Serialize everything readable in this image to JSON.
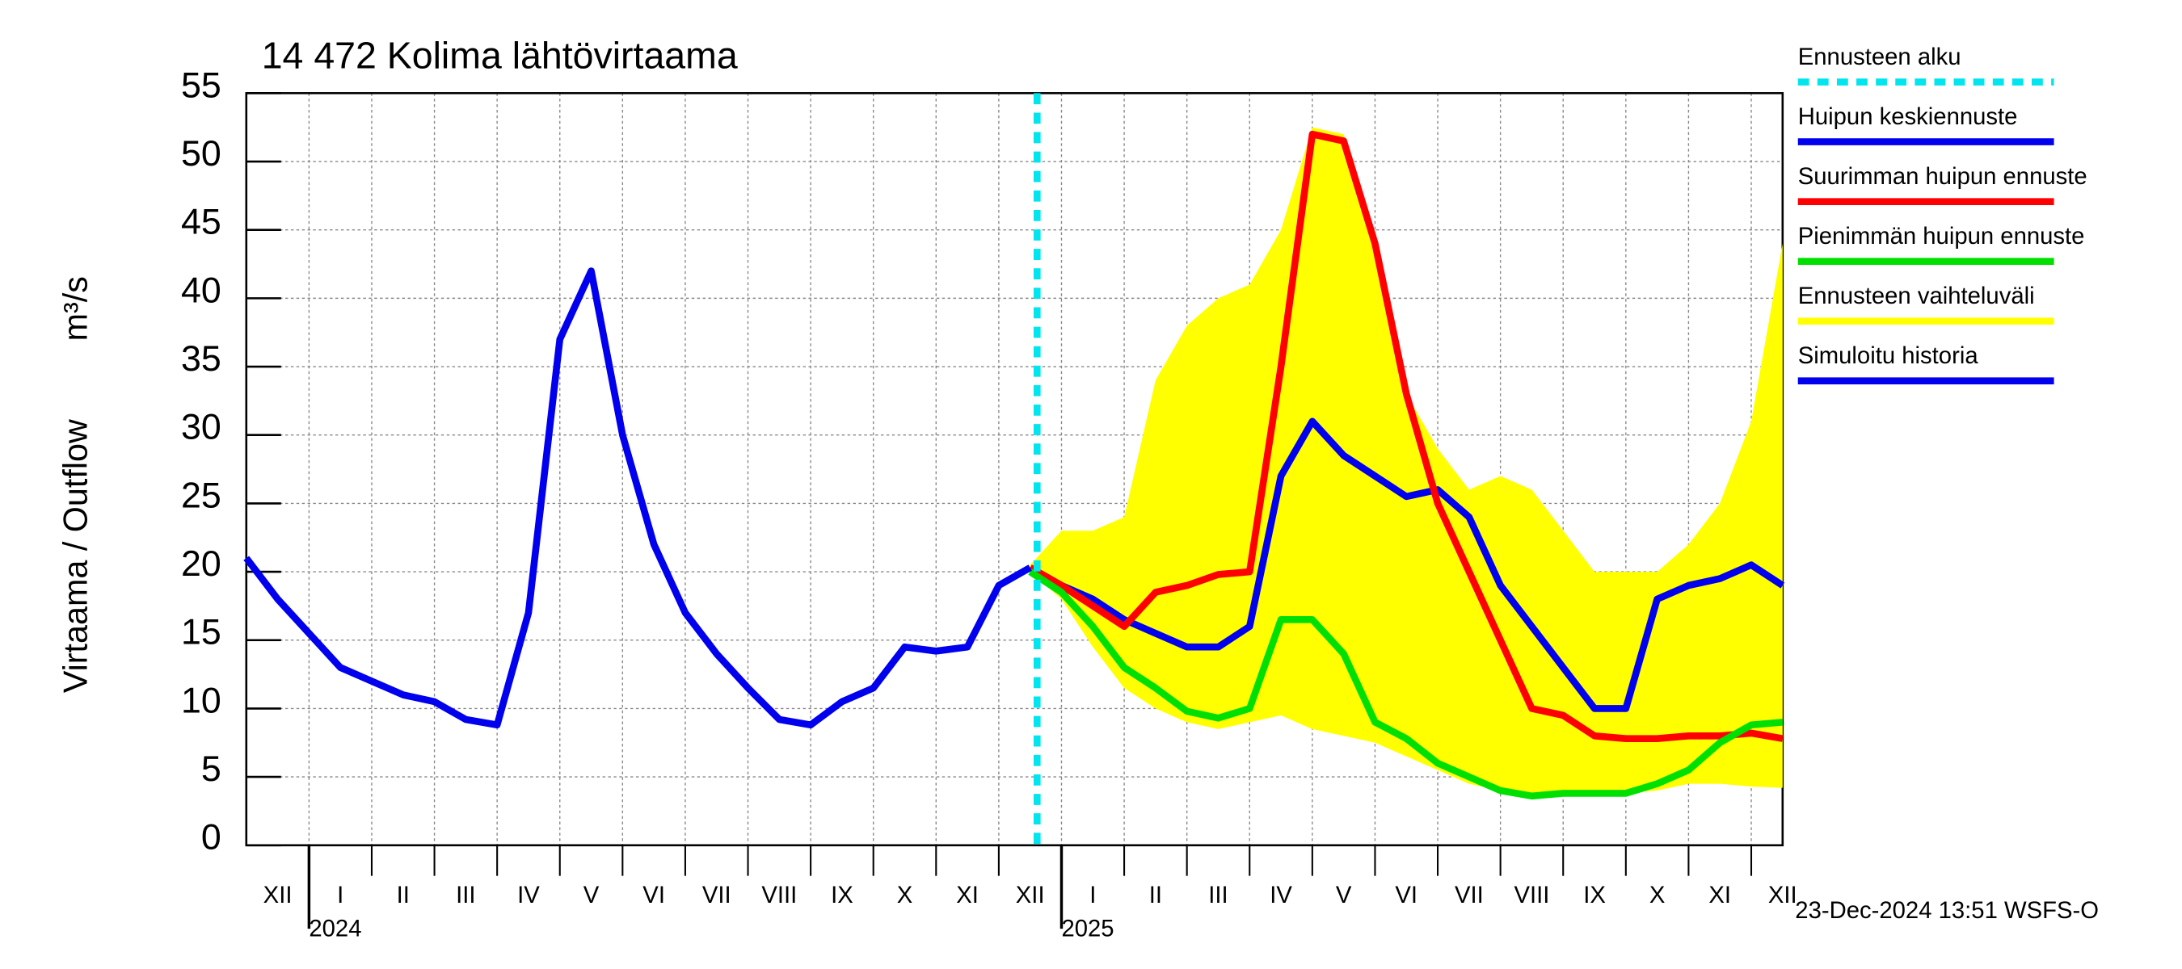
{
  "chart_data": {
    "type": "line",
    "title": "14 472 Kolima lähtövirtaama",
    "ylabel": "Virtaama / Outflow",
    "yunit": "m³/s",
    "timestamp": "23-Dec-2024 13:51 WSFS-O",
    "ylim": [
      0,
      55
    ],
    "yticks": [
      0,
      5,
      10,
      15,
      20,
      25,
      30,
      35,
      40,
      45,
      50,
      55
    ],
    "grid": true,
    "legend": "right",
    "categories": [
      null,
      "XII",
      null,
      "I",
      null,
      "II",
      null,
      "III",
      null,
      "IV",
      null,
      "V",
      null,
      "VI",
      null,
      "VII",
      null,
      "VIII",
      null,
      "IX",
      null,
      "X",
      null,
      "XI",
      null,
      "XII",
      null,
      "I",
      null,
      "II",
      null,
      "III",
      null,
      "IV",
      null,
      "V",
      null,
      "VI",
      null,
      "VII",
      null,
      "VIII",
      null,
      "IX",
      null,
      "X",
      null,
      "XI",
      null,
      "XII"
    ],
    "years": [
      null,
      null,
      "2024",
      null,
      null,
      null,
      null,
      null,
      null,
      null,
      null,
      null,
      null,
      null,
      null,
      null,
      null,
      null,
      null,
      null,
      null,
      null,
      null,
      null,
      null,
      null,
      "2025",
      null,
      null,
      null,
      null,
      null,
      null,
      null,
      null,
      null,
      null,
      null,
      null,
      null,
      null,
      null,
      null,
      null,
      null,
      null,
      null,
      null,
      null,
      null
    ],
    "series": [
      {
        "name": "Ennusteen alku",
        "color": "#00e5ee",
        "style": "forecast-start"
      },
      {
        "name": "Huipun keskiennuste",
        "color": "#0000ee",
        "style": "line",
        "values": [
          null,
          null,
          null,
          null,
          null,
          null,
          null,
          null,
          null,
          null,
          null,
          null,
          null,
          null,
          null,
          null,
          null,
          null,
          null,
          null,
          null,
          null,
          null,
          null,
          null,
          20.3,
          19,
          18,
          16.5,
          15.5,
          14.5,
          14.5,
          16,
          27,
          31,
          28.5,
          27,
          25.5,
          26,
          24,
          19,
          16,
          13,
          10,
          10,
          18,
          19,
          19.5,
          20.5,
          19
        ]
      },
      {
        "name": "Suurimman huipun ennuste",
        "color": "#ff0000",
        "style": "line",
        "values": [
          null,
          null,
          null,
          null,
          null,
          null,
          null,
          null,
          null,
          null,
          null,
          null,
          null,
          null,
          null,
          null,
          null,
          null,
          null,
          null,
          null,
          null,
          null,
          null,
          null,
          20.3,
          19,
          17.5,
          16,
          18.5,
          19,
          19.8,
          20,
          35,
          52,
          51.5,
          44,
          33,
          25,
          20,
          15,
          10,
          9.5,
          8,
          7.8,
          7.8,
          8,
          8,
          8.2,
          7.8
        ]
      },
      {
        "name": "Pienimmän huipun ennuste",
        "color": "#00e000",
        "style": "line",
        "values": [
          null,
          null,
          null,
          null,
          null,
          null,
          null,
          null,
          null,
          null,
          null,
          null,
          null,
          null,
          null,
          null,
          null,
          null,
          null,
          null,
          null,
          null,
          null,
          null,
          null,
          20,
          18.5,
          16,
          13,
          11.5,
          9.8,
          9.3,
          10,
          16.5,
          16.5,
          14,
          9,
          7.8,
          6,
          5,
          4,
          3.6,
          3.8,
          3.8,
          3.8,
          4.5,
          5.5,
          7.5,
          8.8,
          9
        ]
      },
      {
        "name": "Ennusteen vaihteluväli",
        "color": "#ffff00",
        "style": "band",
        "upper": [
          null,
          null,
          null,
          null,
          null,
          null,
          null,
          null,
          null,
          null,
          null,
          null,
          null,
          null,
          null,
          null,
          null,
          null,
          null,
          null,
          null,
          null,
          null,
          null,
          null,
          20.5,
          23,
          23,
          24,
          34,
          38,
          40,
          41,
          45,
          52.5,
          52,
          44,
          33,
          29,
          26,
          27,
          26,
          23,
          20,
          20,
          20,
          22,
          25,
          31,
          44
        ],
        "lower": [
          null,
          null,
          null,
          null,
          null,
          null,
          null,
          null,
          null,
          null,
          null,
          null,
          null,
          null,
          null,
          null,
          null,
          null,
          null,
          null,
          null,
          null,
          null,
          null,
          null,
          20,
          18,
          14.5,
          11.5,
          10,
          9,
          8.5,
          9,
          9.5,
          8.5,
          8,
          7.5,
          6.5,
          5.5,
          4.5,
          4,
          3.5,
          3.8,
          3.8,
          3.8,
          4,
          4.5,
          4.5,
          4.3,
          4.2
        ]
      },
      {
        "name": "Simuloitu historia",
        "color": "#0000ee",
        "style": "line",
        "values": [
          21,
          18,
          15.5,
          13,
          12,
          11,
          10.5,
          9.2,
          8.8,
          17,
          37,
          42,
          30,
          22,
          17,
          14,
          11.5,
          9.2,
          8.8,
          10.5,
          11.5,
          14.5,
          14.2,
          14.5,
          19,
          20.3,
          null,
          null,
          null,
          null,
          null,
          null,
          null,
          null,
          null,
          null,
          null,
          null,
          null,
          null,
          null,
          null,
          null,
          null,
          null,
          null,
          null,
          null,
          null,
          null
        ]
      }
    ]
  }
}
